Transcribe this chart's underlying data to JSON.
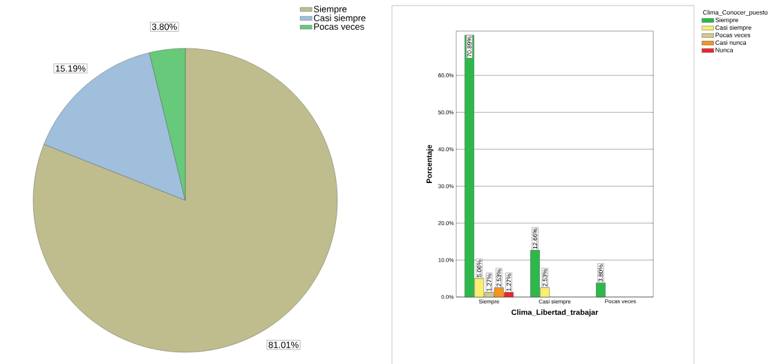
{
  "chart_data": [
    {
      "type": "pie",
      "categories": [
        "Siempre",
        "Casi siempre",
        "Pocas veces"
      ],
      "values": [
        81.01,
        15.19,
        3.8
      ],
      "colors": [
        "#bfbd8d",
        "#9fbfdc",
        "#67c97a"
      ],
      "value_labels": [
        "81.01%",
        "15.19%",
        "3.80%"
      ],
      "legend": "top right"
    },
    {
      "type": "bar",
      "xlabel": "Clima_Libertad_trabajar",
      "ylabel": "Porcentaje",
      "legend_title": "Clima_Conocer_puesto",
      "categories": [
        "Siempre",
        "Casi siempre",
        "Pocas veces"
      ],
      "series": [
        {
          "name": "Siempre",
          "color": "#2db84a",
          "values": [
            70.89,
            12.66,
            3.8
          ],
          "value_labels": [
            "70.89%",
            "12.66%",
            "3.80%"
          ]
        },
        {
          "name": "Casi siempre",
          "color": "#f8f06e",
          "values": [
            5.06,
            2.53,
            null
          ],
          "value_labels": [
            "5.06%",
            "2.53%",
            null
          ]
        },
        {
          "name": "Pocas veces",
          "color": "#cfcc8e",
          "values": [
            1.27,
            null,
            null
          ],
          "value_labels": [
            "1.27%",
            null,
            null
          ]
        },
        {
          "name": "Casi nunca",
          "color": "#f7941d",
          "values": [
            2.53,
            null,
            null
          ],
          "value_labels": [
            "2.53%",
            null,
            null
          ]
        },
        {
          "name": "Nunca",
          "color": "#e8282e",
          "values": [
            1.27,
            null,
            null
          ],
          "value_labels": [
            "1.27%",
            null,
            null
          ]
        }
      ],
      "ylim": [
        0,
        72
      ],
      "yticks": [
        {
          "value": 0,
          "label": "0.0%"
        },
        {
          "value": 10,
          "label": "10.0%"
        },
        {
          "value": 20,
          "label": "20.0%"
        },
        {
          "value": 30,
          "label": "30.0%"
        },
        {
          "value": 40,
          "label": "40.0%"
        },
        {
          "value": 50,
          "label": "50.0%"
        },
        {
          "value": 60,
          "label": "60.0%"
        }
      ],
      "grid": "y",
      "legend": "right"
    }
  ]
}
